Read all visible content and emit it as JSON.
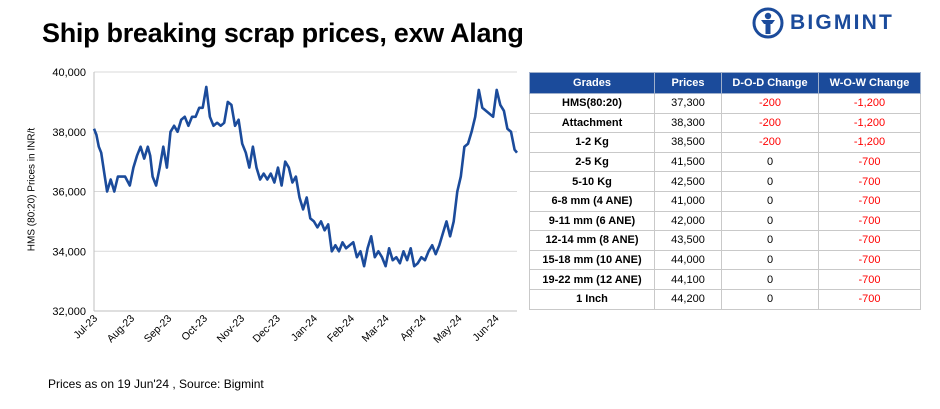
{
  "title": "Ship breaking scrap prices, exw Alang",
  "logo": {
    "text": "BIGMINT",
    "icon": "bigmint-person-icon",
    "color": "#1b4b9b"
  },
  "footer": "Prices as on 19 Jun'24 , Source: Bigmint",
  "chart_data": {
    "type": "line",
    "title": "",
    "ylabel": "HMS (80:20) Prices in INR/t",
    "xlabel": "",
    "ylim": [
      32000,
      40000
    ],
    "yticks": [
      32000,
      34000,
      36000,
      38000,
      40000
    ],
    "ytick_labels": [
      "32,000",
      "34,000",
      "36,000",
      "38,000",
      "40,000"
    ],
    "x_ticks": [
      "Jul-23",
      "Aug-23",
      "Sep-23",
      "Oct-23",
      "Nov-23",
      "Dec-23",
      "Jan-24",
      "Feb-24",
      "Mar-24",
      "Apr-24",
      "May-24",
      "Jun-24"
    ],
    "grid": true,
    "color": "#1b4b9b",
    "series": [
      {
        "x": [
          "2023-07-01",
          "2023-07-03",
          "2023-07-05",
          "2023-07-07",
          "2023-07-10",
          "2023-07-12",
          "2023-07-15",
          "2023-07-18",
          "2023-07-21",
          "2023-07-24",
          "2023-07-27",
          "2023-07-31",
          "2023-08-03",
          "2023-08-06",
          "2023-08-09",
          "2023-08-12",
          "2023-08-15",
          "2023-08-17",
          "2023-08-19",
          "2023-08-22",
          "2023-08-25",
          "2023-08-28",
          "2023-08-31",
          "2023-09-03",
          "2023-09-06",
          "2023-09-09",
          "2023-09-12",
          "2023-09-15",
          "2023-09-18",
          "2023-09-21",
          "2023-09-24",
          "2023-09-27",
          "2023-09-30",
          "2023-10-03",
          "2023-10-06",
          "2023-10-09",
          "2023-10-12",
          "2023-10-15",
          "2023-10-18",
          "2023-10-21",
          "2023-10-24",
          "2023-10-27",
          "2023-10-30",
          "2023-11-02",
          "2023-11-05",
          "2023-11-08",
          "2023-11-11",
          "2023-11-14",
          "2023-11-17",
          "2023-11-20",
          "2023-11-23",
          "2023-11-26",
          "2023-11-29",
          "2023-12-02",
          "2023-12-05",
          "2023-12-08",
          "2023-12-11",
          "2023-12-14",
          "2023-12-17",
          "2023-12-20",
          "2023-12-23",
          "2023-12-26",
          "2023-12-29",
          "2024-01-01",
          "2024-01-04",
          "2024-01-07",
          "2024-01-10",
          "2024-01-13",
          "2024-01-16",
          "2024-01-19",
          "2024-01-22",
          "2024-01-25",
          "2024-01-28",
          "2024-01-31",
          "2024-02-03",
          "2024-02-06",
          "2024-02-09",
          "2024-02-12",
          "2024-02-15",
          "2024-02-18",
          "2024-02-21",
          "2024-02-24",
          "2024-02-27",
          "2024-03-01",
          "2024-03-04",
          "2024-03-07",
          "2024-03-10",
          "2024-03-13",
          "2024-03-16",
          "2024-03-19",
          "2024-03-22",
          "2024-03-25",
          "2024-03-28",
          "2024-03-31",
          "2024-04-03",
          "2024-04-06",
          "2024-04-09",
          "2024-04-12",
          "2024-04-15",
          "2024-04-18",
          "2024-04-21",
          "2024-04-24",
          "2024-04-27",
          "2024-04-30",
          "2024-05-03",
          "2024-05-06",
          "2024-05-09",
          "2024-05-12",
          "2024-05-15",
          "2024-05-18",
          "2024-05-21",
          "2024-05-24",
          "2024-05-27",
          "2024-05-30",
          "2024-06-02",
          "2024-06-05",
          "2024-06-08",
          "2024-06-11",
          "2024-06-14",
          "2024-06-17",
          "2024-06-19"
        ],
        "values": [
          38100,
          37900,
          37500,
          37300,
          36500,
          36000,
          36400,
          36000,
          36500,
          36500,
          36500,
          36200,
          36800,
          37200,
          37500,
          37100,
          37500,
          37200,
          36500,
          36200,
          36800,
          37500,
          36800,
          38000,
          38200,
          38000,
          38400,
          38500,
          38200,
          38500,
          38500,
          38800,
          38800,
          39500,
          38500,
          38200,
          38300,
          38200,
          38300,
          39000,
          38900,
          38200,
          38400,
          37600,
          37300,
          36800,
          37500,
          36800,
          36400,
          36600,
          36400,
          36600,
          36300,
          36800,
          36200,
          37000,
          36800,
          36300,
          36500,
          35800,
          35400,
          35800,
          35100,
          35000,
          34800,
          35000,
          34700,
          34900,
          34000,
          34200,
          34000,
          34300,
          34100,
          34200,
          34300,
          33800,
          34000,
          33500,
          34100,
          34500,
          33800,
          34000,
          33800,
          33500,
          34100,
          33700,
          33800,
          33600,
          34000,
          33700,
          34100,
          33500,
          33600,
          33800,
          33700,
          34000,
          34200,
          33900,
          34200,
          34600,
          35000,
          34500,
          35000,
          36000,
          36500,
          37500,
          37600,
          38000,
          38500,
          39400,
          38800,
          38700,
          38600,
          38500,
          39400,
          38900,
          38700,
          38100,
          38000,
          37400,
          37300
        ]
      }
    ]
  },
  "table": {
    "headers": [
      "Grades",
      "Prices",
      "D-O-D Change",
      "W-O-W Change"
    ],
    "header_bg": "#1b4b9b",
    "negative_color": "#ff0000",
    "rows": [
      {
        "grade": "HMS(80:20)",
        "price": "37,300",
        "dod": "-200",
        "wow": "-1,200"
      },
      {
        "grade": "Attachment",
        "price": "38,300",
        "dod": "-200",
        "wow": "-1,200"
      },
      {
        "grade": "1-2 Kg",
        "price": "38,500",
        "dod": "-200",
        "wow": "-1,200"
      },
      {
        "grade": "2-5 Kg",
        "price": "41,500",
        "dod": "0",
        "wow": "-700"
      },
      {
        "grade": "5-10 Kg",
        "price": "42,500",
        "dod": "0",
        "wow": "-700"
      },
      {
        "grade": "6-8 mm (4 ANE)",
        "price": "41,000",
        "dod": "0",
        "wow": "-700"
      },
      {
        "grade": "9-11 mm (6 ANE)",
        "price": "42,000",
        "dod": "0",
        "wow": "-700"
      },
      {
        "grade": "12-14 mm (8 ANE)",
        "price": "43,500",
        "dod": "0",
        "wow": "-700"
      },
      {
        "grade": "15-18 mm (10 ANE)",
        "price": "44,000",
        "dod": "0",
        "wow": "-700"
      },
      {
        "grade": "19-22 mm (12 ANE)",
        "price": "44,100",
        "dod": "0",
        "wow": "-700"
      },
      {
        "grade": "1 Inch",
        "price": "44,200",
        "dod": "0",
        "wow": "-700"
      }
    ]
  }
}
